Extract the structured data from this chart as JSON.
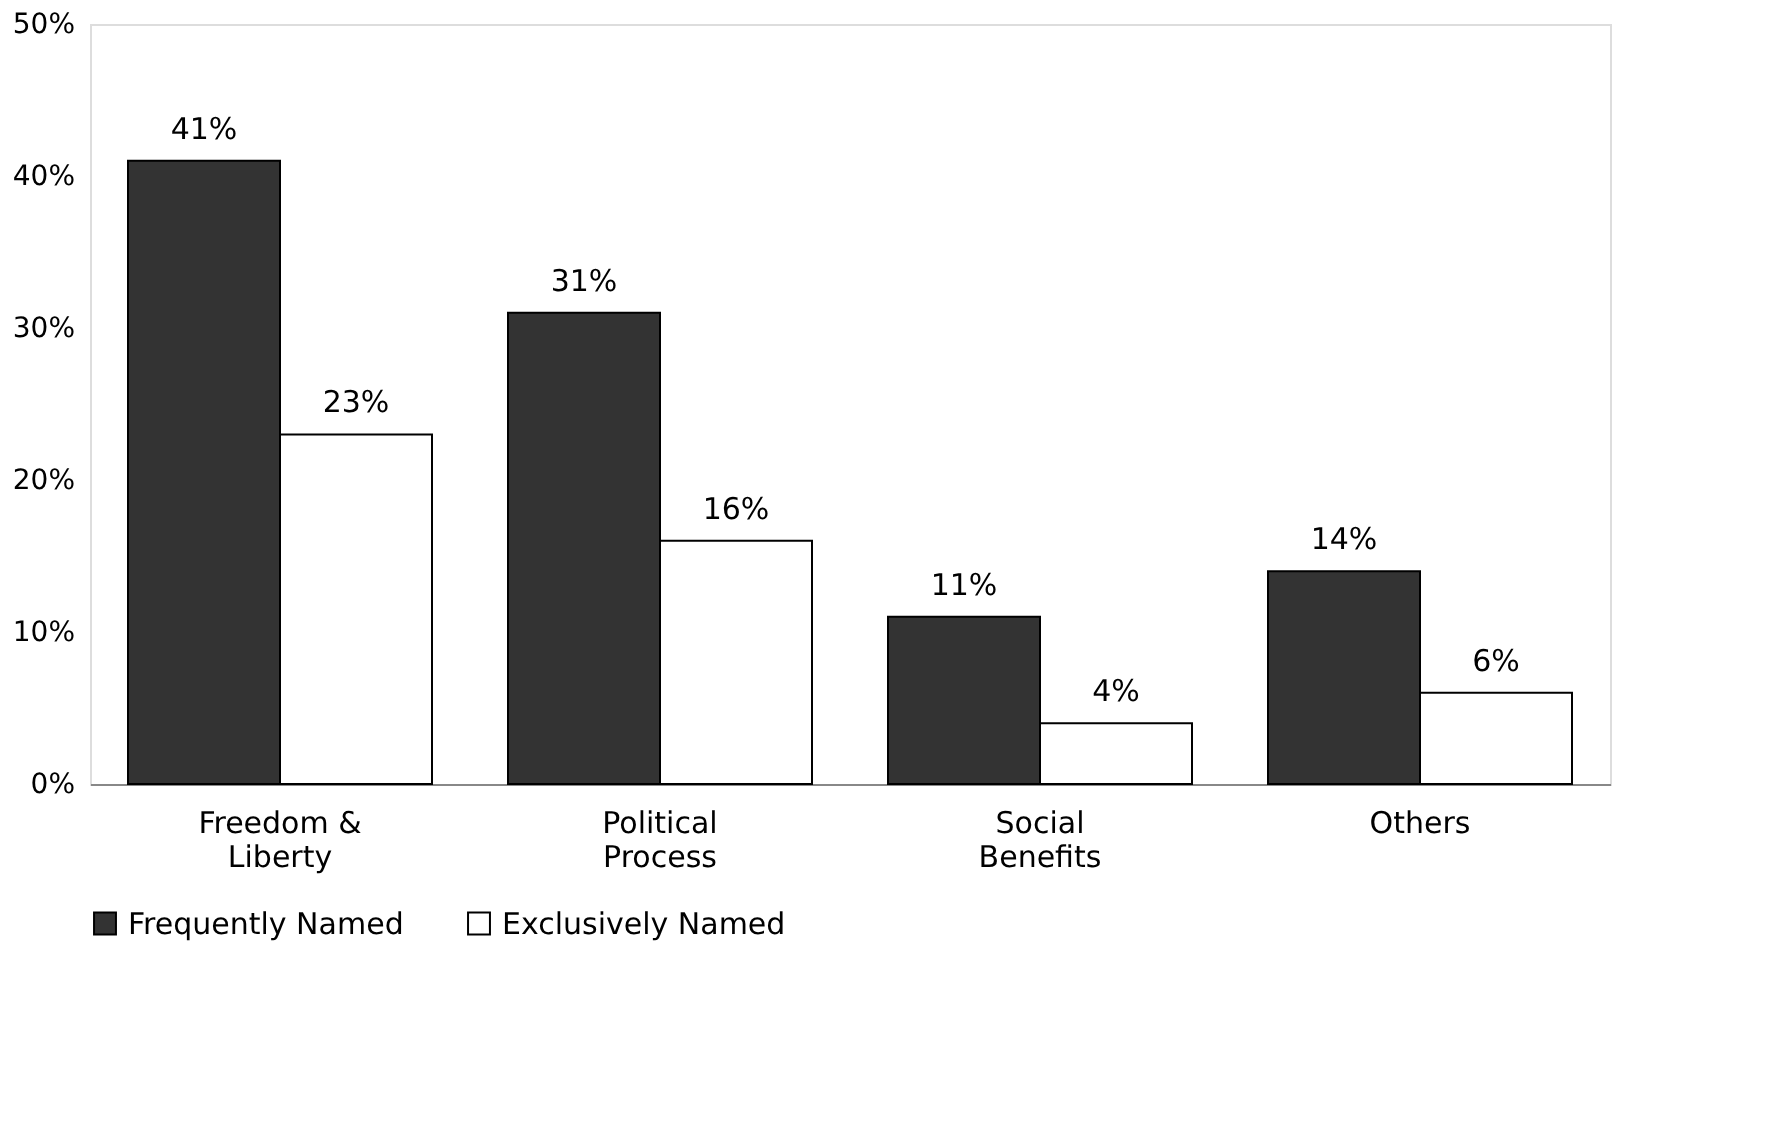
{
  "chart_data": {
    "type": "bar",
    "categories": [
      "Freedom & Liberty",
      "Political Process",
      "Social Benefits",
      "Others"
    ],
    "series": [
      {
        "name": "Frequently Named",
        "color": "#333333",
        "values": [
          41,
          31,
          11,
          14
        ],
        "value_labels": [
          "41%",
          "31%",
          "11%",
          "14%"
        ]
      },
      {
        "name": "Exclusively Named",
        "color": "#ffffff",
        "values": [
          23,
          16,
          4,
          6
        ],
        "value_labels": [
          "23%",
          "16%",
          "4%",
          "6%"
        ]
      }
    ],
    "ylim": [
      0,
      50
    ],
    "yticks": [
      {
        "value": 0,
        "label": "0%"
      },
      {
        "value": 10,
        "label": "10%"
      },
      {
        "value": 20,
        "label": "20%"
      },
      {
        "value": 30,
        "label": "30%"
      },
      {
        "value": 40,
        "label": "40%"
      },
      {
        "value": 50,
        "label": "50%"
      }
    ],
    "legend": "bottom",
    "grid": false
  }
}
